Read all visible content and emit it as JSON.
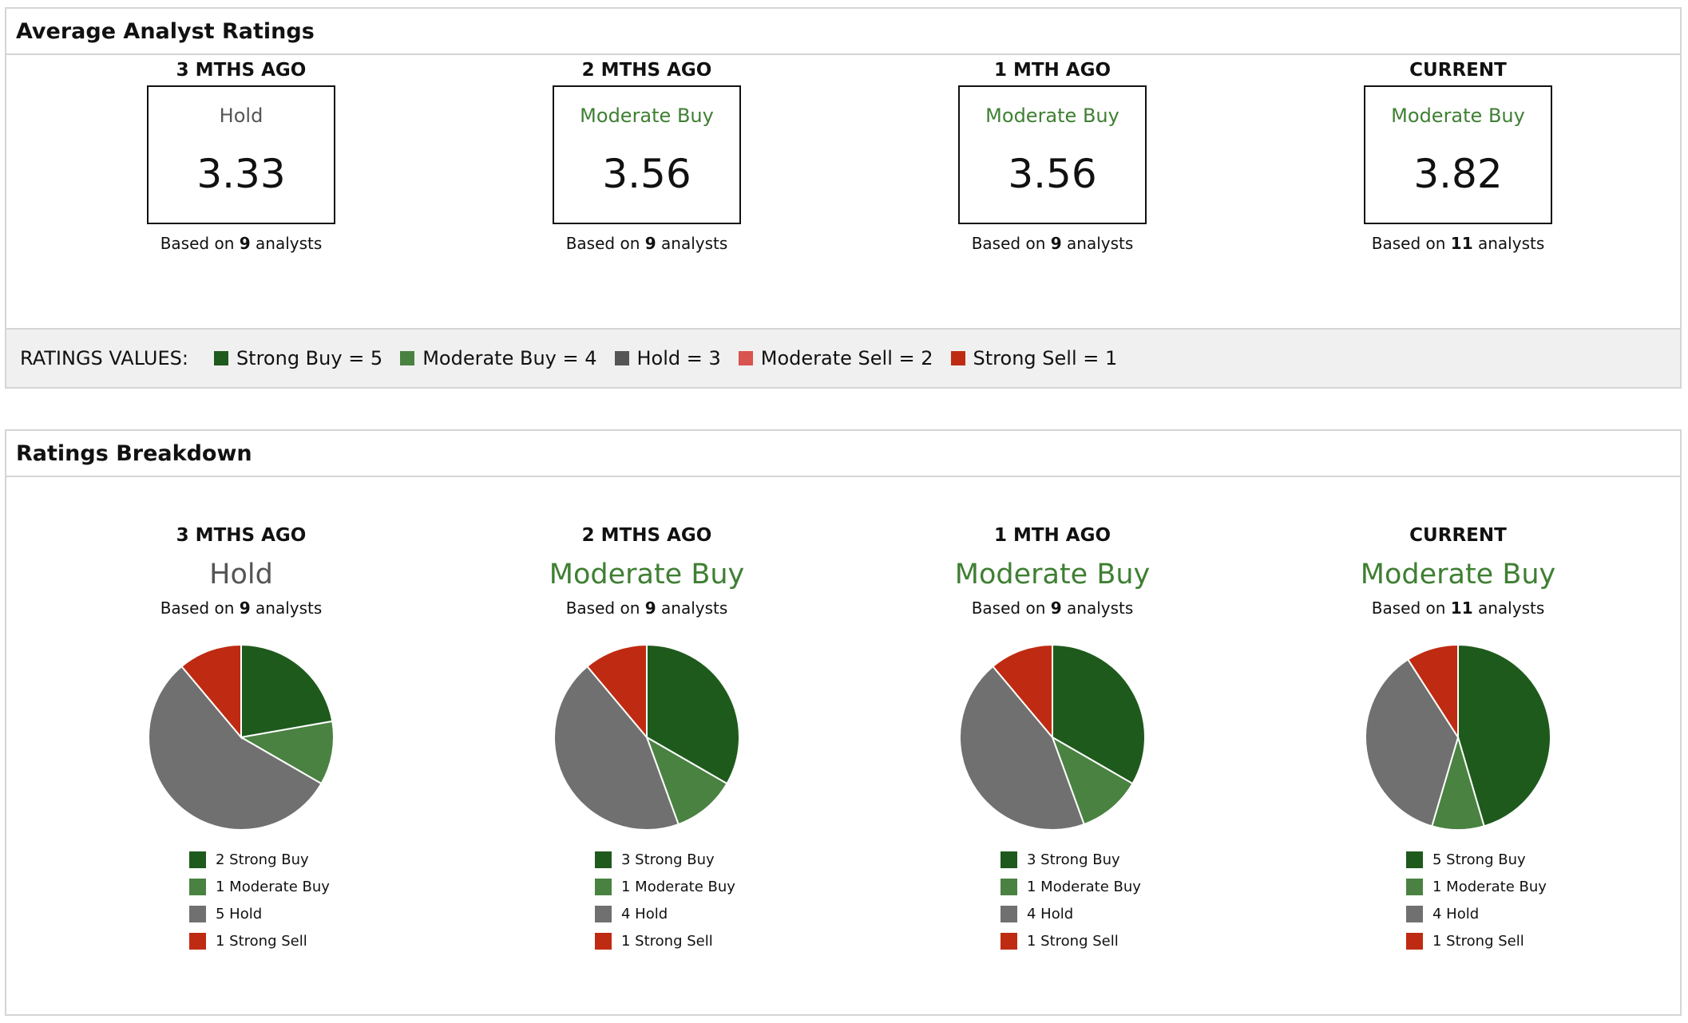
{
  "avg_panel": {
    "title": "Average Analyst Ratings",
    "columns": [
      {
        "label": "3 MTHS AGO",
        "rating": "Hold",
        "rating_class": "hold",
        "value": "3.33",
        "based_prefix": "Based on",
        "count": "9",
        "based_suffix": "analysts"
      },
      {
        "label": "2 MTHS AGO",
        "rating": "Moderate Buy",
        "rating_class": "modbuy",
        "value": "3.56",
        "based_prefix": "Based on",
        "count": "9",
        "based_suffix": "analysts"
      },
      {
        "label": "1 MTH AGO",
        "rating": "Moderate Buy",
        "rating_class": "modbuy",
        "value": "3.56",
        "based_prefix": "Based on",
        "count": "9",
        "based_suffix": "analysts"
      },
      {
        "label": "CURRENT",
        "rating": "Moderate Buy",
        "rating_class": "modbuy",
        "value": "3.82",
        "based_prefix": "Based on",
        "count": "11",
        "based_suffix": "analysts"
      }
    ],
    "values_bar": {
      "title": "RATINGS VALUES:",
      "items": [
        {
          "label": "Strong Buy = 5",
          "color": "#1f5a1d"
        },
        {
          "label": "Moderate Buy = 4",
          "color": "#4a8241"
        },
        {
          "label": "Hold = 3",
          "color": "#555555"
        },
        {
          "label": "Moderate Sell = 2",
          "color": "#d9534f"
        },
        {
          "label": "Strong Sell = 1",
          "color": "#bf2b12"
        }
      ]
    }
  },
  "breakdown_panel": {
    "title": "Ratings Breakdown"
  },
  "colors": {
    "strong_buy": "#1f5a1d",
    "moderate_buy": "#4a8241",
    "hold": "#707070",
    "strong_sell": "#bf2b12",
    "hold_text": "#555555",
    "moderate_buy_text": "#3f7f33"
  },
  "chart_data": [
    {
      "type": "pie",
      "label": "3 MTHS AGO",
      "rating": "Hold",
      "rating_class": "hold",
      "based_prefix": "Based on",
      "count": "9",
      "based_suffix": "analysts",
      "slices": [
        {
          "name": "Strong Buy",
          "value": 2,
          "color": "#1f5a1d",
          "legend": "2 Strong Buy"
        },
        {
          "name": "Moderate Buy",
          "value": 1,
          "color": "#4a8241",
          "legend": "1 Moderate Buy"
        },
        {
          "name": "Hold",
          "value": 5,
          "color": "#707070",
          "legend": "5 Hold"
        },
        {
          "name": "Strong Sell",
          "value": 1,
          "color": "#bf2b12",
          "legend": "1 Strong Sell"
        }
      ]
    },
    {
      "type": "pie",
      "label": "2 MTHS AGO",
      "rating": "Moderate Buy",
      "rating_class": "modbuy",
      "based_prefix": "Based on",
      "count": "9",
      "based_suffix": "analysts",
      "slices": [
        {
          "name": "Strong Buy",
          "value": 3,
          "color": "#1f5a1d",
          "legend": "3 Strong Buy"
        },
        {
          "name": "Moderate Buy",
          "value": 1,
          "color": "#4a8241",
          "legend": "1 Moderate Buy"
        },
        {
          "name": "Hold",
          "value": 4,
          "color": "#707070",
          "legend": "4 Hold"
        },
        {
          "name": "Strong Sell",
          "value": 1,
          "color": "#bf2b12",
          "legend": "1 Strong Sell"
        }
      ]
    },
    {
      "type": "pie",
      "label": "1 MTH AGO",
      "rating": "Moderate Buy",
      "rating_class": "modbuy",
      "based_prefix": "Based on",
      "count": "9",
      "based_suffix": "analysts",
      "slices": [
        {
          "name": "Strong Buy",
          "value": 3,
          "color": "#1f5a1d",
          "legend": "3 Strong Buy"
        },
        {
          "name": "Moderate Buy",
          "value": 1,
          "color": "#4a8241",
          "legend": "1 Moderate Buy"
        },
        {
          "name": "Hold",
          "value": 4,
          "color": "#707070",
          "legend": "4 Hold"
        },
        {
          "name": "Strong Sell",
          "value": 1,
          "color": "#bf2b12",
          "legend": "1 Strong Sell"
        }
      ]
    },
    {
      "type": "pie",
      "label": "CURRENT",
      "rating": "Moderate Buy",
      "rating_class": "modbuy",
      "based_prefix": "Based on",
      "count": "11",
      "based_suffix": "analysts",
      "slices": [
        {
          "name": "Strong Buy",
          "value": 5,
          "color": "#1f5a1d",
          "legend": "5 Strong Buy"
        },
        {
          "name": "Moderate Buy",
          "value": 1,
          "color": "#4a8241",
          "legend": "1 Moderate Buy"
        },
        {
          "name": "Hold",
          "value": 4,
          "color": "#707070",
          "legend": "4 Hold"
        },
        {
          "name": "Strong Sell",
          "value": 1,
          "color": "#bf2b12",
          "legend": "1 Strong Sell"
        }
      ]
    }
  ]
}
